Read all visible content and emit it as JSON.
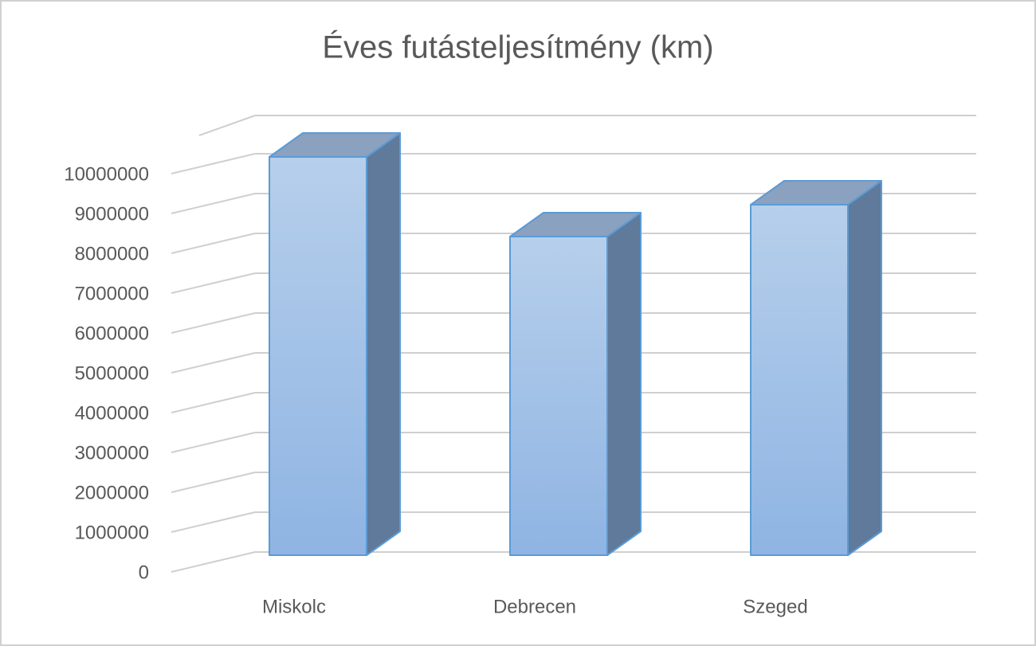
{
  "chart_data": {
    "type": "bar3d",
    "title": "Éves futásteljesítmény (km)",
    "categories": [
      "Miskolc",
      "Debrecen",
      "Szeged"
    ],
    "values": [
      10000000,
      8000000,
      8800000
    ],
    "color": "#9dbfe8",
    "ylim": [
      0,
      11000000
    ],
    "yticks": [
      0,
      1000000,
      2000000,
      3000000,
      4000000,
      5000000,
      6000000,
      7000000,
      8000000,
      9000000,
      10000000
    ],
    "grid": true
  }
}
